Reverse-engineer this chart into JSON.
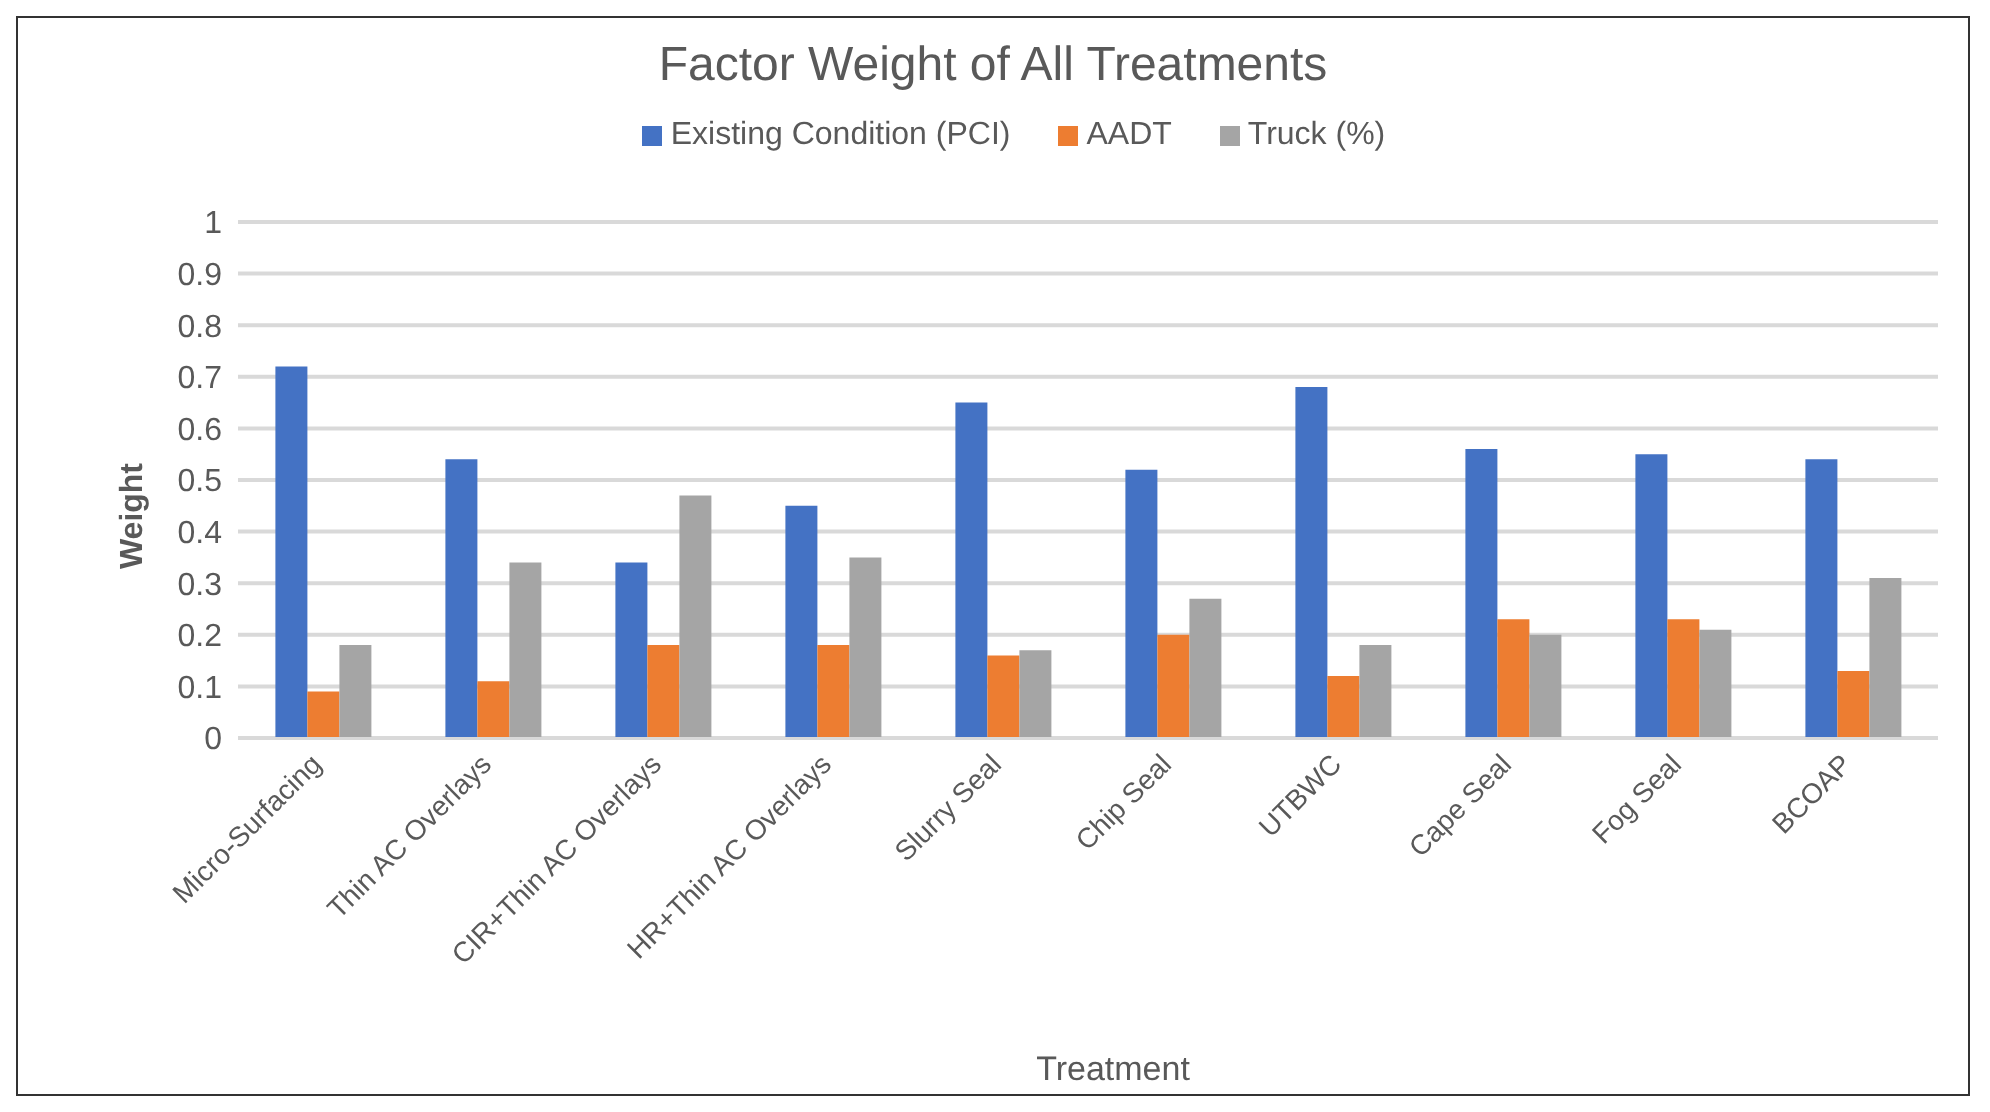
{
  "chart_data": {
    "type": "bar",
    "title": "Factor Weight of All Treatments",
    "xlabel": "Treatment",
    "ylabel": "Weight",
    "categories": [
      "Micro-Surfacing",
      "Thin AC Overlays",
      "CIR+Thin AC Overlays",
      "HR+Thin AC Overlays",
      "Slurry Seal",
      "Chip Seal",
      "UTBWC",
      "Cape Seal",
      "Fog Seal",
      "BCOAP"
    ],
    "series": [
      {
        "name": "Existing Condition (PCI)",
        "color": "#4472c4",
        "values": [
          0.72,
          0.54,
          0.34,
          0.45,
          0.65,
          0.52,
          0.68,
          0.56,
          0.55,
          0.54
        ]
      },
      {
        "name": "AADT",
        "color": "#ed7d31",
        "values": [
          0.09,
          0.11,
          0.18,
          0.18,
          0.16,
          0.2,
          0.12,
          0.23,
          0.23,
          0.13
        ]
      },
      {
        "name": "Truck (%)",
        "color": "#a5a5a5",
        "values": [
          0.18,
          0.34,
          0.47,
          0.35,
          0.17,
          0.27,
          0.18,
          0.2,
          0.21,
          0.31
        ]
      }
    ],
    "ylim": [
      0,
      1
    ],
    "yticks": [
      0,
      0.1,
      0.2,
      0.3,
      0.4,
      0.5,
      0.6,
      0.7,
      0.8,
      0.9,
      1
    ],
    "grid": "y",
    "legend": "top"
  }
}
